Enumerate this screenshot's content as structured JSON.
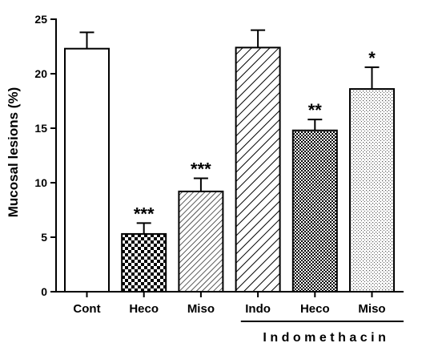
{
  "chart_data": {
    "type": "bar",
    "title": "",
    "xlabel": "",
    "ylabel": "Mucosal lesions (%)",
    "ylim": [
      0,
      25
    ],
    "yticks": [
      0,
      5,
      10,
      15,
      20,
      25
    ],
    "categories": [
      "Cont",
      "Heco",
      "Miso",
      "Indo",
      "Heco",
      "Miso"
    ],
    "values": [
      22.3,
      5.3,
      9.2,
      22.4,
      14.8,
      18.6
    ],
    "errors": [
      1.5,
      1.0,
      1.2,
      1.6,
      1.0,
      2.0
    ],
    "significance": [
      "",
      "***",
      "***",
      "",
      "**",
      "*"
    ],
    "fills": [
      "none",
      "checker",
      "diagonal",
      "diagonal-wide",
      "checker-fine",
      "dots"
    ],
    "group": {
      "label": "Indomethacin",
      "from_index": 4,
      "to_index": 5
    },
    "grid": false,
    "colors": {
      "stroke": "#000000",
      "background": "#ffffff"
    }
  }
}
